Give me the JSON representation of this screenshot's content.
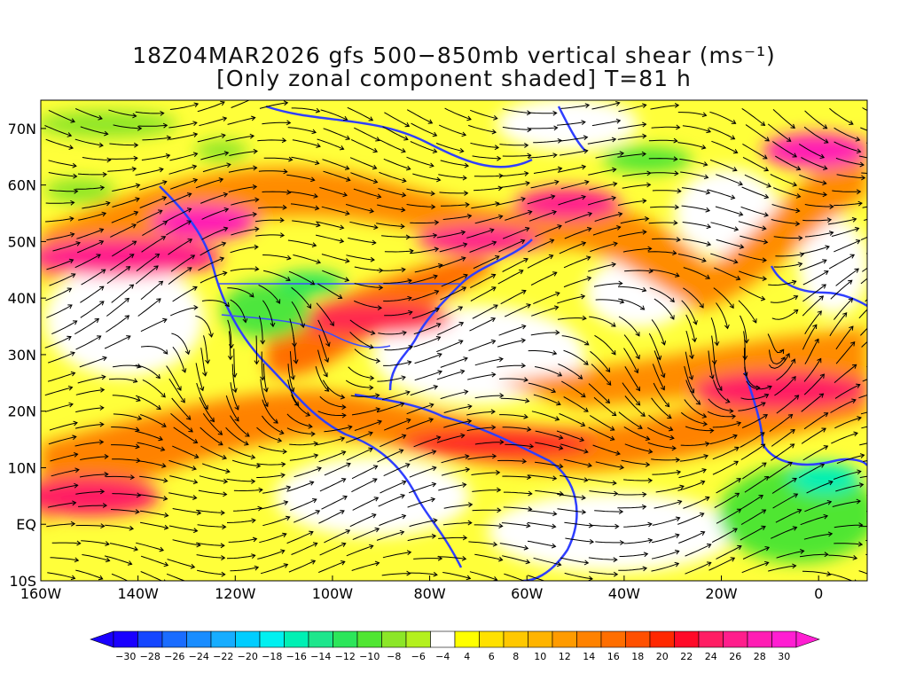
{
  "title": {
    "line1": "18Z04MAR2026 gfs 500−850mb vertical shear (ms⁻¹)",
    "line2": "[Only zonal component shaded] T=81 h"
  },
  "map": {
    "lon_range": [
      -160,
      10
    ],
    "lat_range": [
      -10,
      75
    ],
    "lat_ticks": [
      {
        "value": 70,
        "label": "70N"
      },
      {
        "value": 60,
        "label": "60N"
      },
      {
        "value": 50,
        "label": "50N"
      },
      {
        "value": 40,
        "label": "40N"
      },
      {
        "value": 30,
        "label": "30N"
      },
      {
        "value": 20,
        "label": "20N"
      },
      {
        "value": 10,
        "label": "10N"
      },
      {
        "value": 0,
        "label": "EQ"
      },
      {
        "value": -10,
        "label": "10S"
      }
    ],
    "lon_ticks": [
      {
        "value": -160,
        "label": "160W"
      },
      {
        "value": -140,
        "label": "140W"
      },
      {
        "value": -120,
        "label": "120W"
      },
      {
        "value": -100,
        "label": "100W"
      },
      {
        "value": -80,
        "label": "80W"
      },
      {
        "value": -60,
        "label": "60W"
      },
      {
        "value": -40,
        "label": "40W"
      },
      {
        "value": -20,
        "label": "20W"
      },
      {
        "value": 0,
        "label": "0"
      }
    ],
    "coastline_color": "#2f3fff",
    "streamline_color": "#000000"
  },
  "colorbar": {
    "labels": [
      "−30",
      "−28",
      "−26",
      "−24",
      "−22",
      "−20",
      "−18",
      "−16",
      "−14",
      "−12",
      "−10",
      "−8",
      "−6",
      "−4",
      "4",
      "6",
      "8",
      "10",
      "12",
      "14",
      "16",
      "18",
      "20",
      "22",
      "24",
      "26",
      "28",
      "30"
    ],
    "colors": [
      "#1a00ff",
      "#1546ff",
      "#1a6cff",
      "#1a8dff",
      "#17adff",
      "#00cdff",
      "#00f0f0",
      "#00f0b4",
      "#1ee68c",
      "#2ce65a",
      "#50e632",
      "#8ce628",
      "#b4f01e",
      "#ffffff",
      "#ffff00",
      "#ffe100",
      "#ffc800",
      "#ffb400",
      "#ff9b00",
      "#ff8200",
      "#ff6e00",
      "#ff5000",
      "#ff2800",
      "#ff0a28",
      "#ff1e64",
      "#ff1e8c",
      "#ff1eb4",
      "#ff1ed2"
    ]
  }
}
